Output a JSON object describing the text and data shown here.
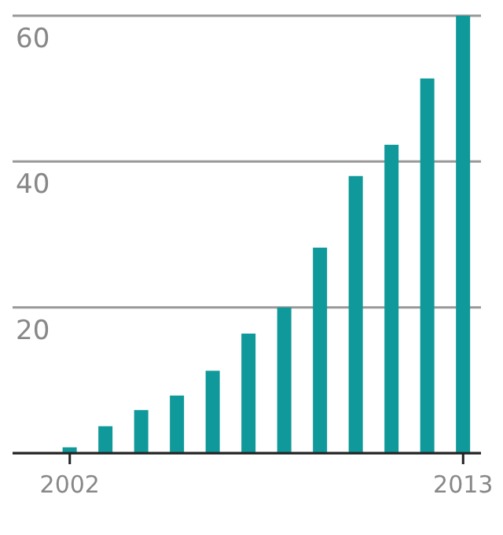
{
  "chart_data": {
    "type": "bar",
    "categories": [
      "2002",
      null,
      null,
      null,
      null,
      null,
      null,
      null,
      null,
      null,
      null,
      "2013"
    ],
    "values": [
      0.8,
      3.7,
      5.9,
      7.9,
      11.3,
      16.4,
      20,
      28.2,
      38,
      42.3,
      51.4,
      60
    ],
    "color": "#10999a",
    "ylim": [
      0,
      60
    ],
    "yticks": [
      20,
      40,
      60
    ],
    "grid": "y"
  }
}
